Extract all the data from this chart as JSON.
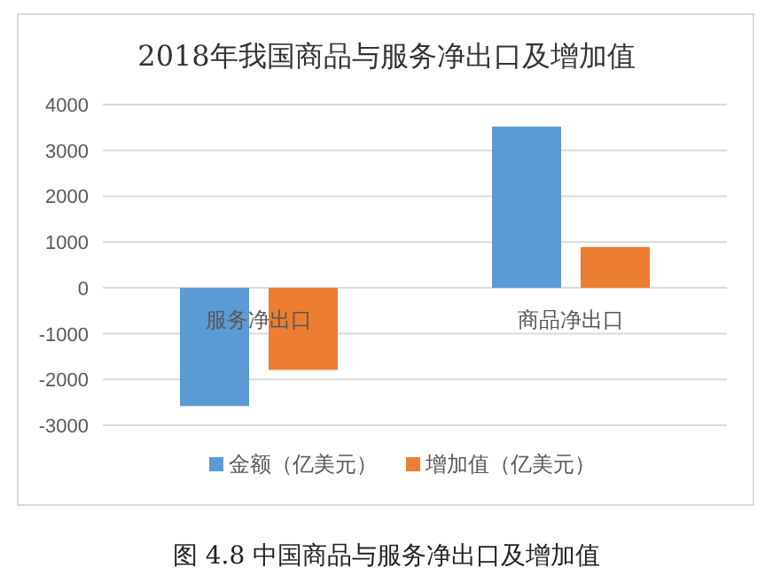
{
  "chart_data": {
    "type": "bar",
    "title": "2018年我国商品与服务净出口及增加值",
    "categories": [
      "服务净出口",
      "商品净出口"
    ],
    "series": [
      {
        "name": "金额（亿美元）",
        "color": "#5b9bd5",
        "values": [
          -2580,
          3520
        ]
      },
      {
        "name": "增加值（亿美元）",
        "color": "#ed7d31",
        "values": [
          -1790,
          890
        ]
      }
    ],
    "ylim": [
      -3000,
      4000
    ],
    "yticks": [
      -3000,
      -2000,
      -1000,
      0,
      1000,
      2000,
      3000,
      4000
    ],
    "grid": "y",
    "legend": "bottom",
    "annotations": [
      "图 4.8 中国商品与服务净出口及增加值"
    ]
  }
}
